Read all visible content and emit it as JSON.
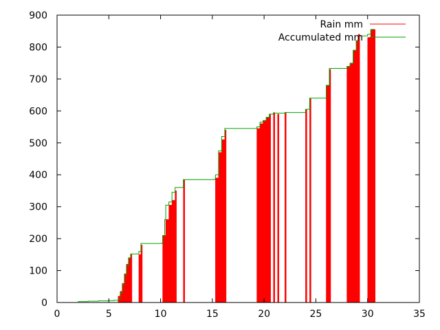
{
  "chart_data": {
    "type": "bar",
    "xlim": [
      0,
      35
    ],
    "ylim": [
      0,
      900
    ],
    "x_ticks": [
      0,
      5,
      10,
      15,
      20,
      25,
      30,
      35
    ],
    "y_ticks": [
      0,
      100,
      200,
      300,
      400,
      500,
      600,
      700,
      800,
      900
    ],
    "legend_position": "top-right",
    "series": [
      {
        "name": "Rain mm",
        "kind": "impulse",
        "color": "#ff0000",
        "x": [
          5.9,
          6.1,
          6.3,
          6.5,
          6.7,
          6.9,
          7.1,
          7.9,
          8.1,
          10.2,
          10.5,
          10.8,
          11.1,
          11.4,
          12.2,
          15.3,
          15.6,
          15.9,
          16.2,
          19.3,
          19.6,
          19.9,
          20.2,
          20.5,
          20.9,
          21.3,
          22.0,
          24.0,
          24.4,
          26.0,
          26.3,
          28.0,
          28.3,
          28.6,
          28.9,
          29.1,
          30.0,
          30.3,
          30.6
        ],
        "values": [
          20,
          35,
          60,
          90,
          120,
          140,
          150,
          150,
          180,
          210,
          260,
          305,
          320,
          350,
          385,
          390,
          470,
          510,
          540,
          545,
          560,
          570,
          580,
          590,
          595,
          590,
          595,
          605,
          640,
          680,
          730,
          740,
          750,
          790,
          820,
          840,
          830,
          855,
          855
        ]
      },
      {
        "name": "Accumulated mm",
        "kind": "step",
        "color": "#00a000",
        "x": [
          2.0,
          3.0,
          4.0,
          5.0,
          5.5,
          5.9,
          6.1,
          6.3,
          6.5,
          6.7,
          6.9,
          7.1,
          7.9,
          8.1,
          10.1,
          10.2,
          10.4,
          10.5,
          10.8,
          11.1,
          11.4,
          12.2,
          15.2,
          15.3,
          15.6,
          15.9,
          16.2,
          19.3,
          19.6,
          19.9,
          20.2,
          20.5,
          20.9,
          22.0,
          24.0,
          24.4,
          26.0,
          26.3,
          28.0,
          28.3,
          28.6,
          28.9,
          29.1,
          30.0,
          30.3,
          30.6
        ],
        "values": [
          3,
          4,
          5,
          6,
          7,
          10,
          30,
          55,
          85,
          115,
          140,
          152,
          160,
          185,
          186,
          210,
          260,
          305,
          315,
          345,
          360,
          385,
          386,
          400,
          475,
          520,
          545,
          550,
          565,
          570,
          580,
          590,
          593,
          595,
          605,
          640,
          680,
          733,
          738,
          748,
          790,
          820,
          835,
          840,
          855,
          857
        ]
      }
    ]
  }
}
